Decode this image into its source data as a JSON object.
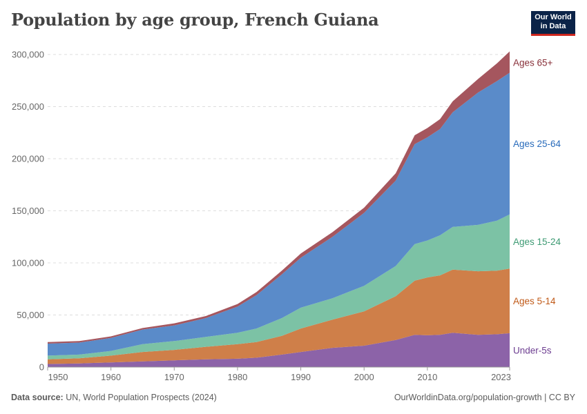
{
  "title": "Population by age group, French Guiana",
  "logo": {
    "line1": "Our World",
    "line2": "in Data"
  },
  "footer": {
    "source_label": "Data source:",
    "source_text": "UN, World Population Prospects (2024)",
    "url": "OurWorldinData.org/population-growth | CC BY"
  },
  "chart_data": {
    "type": "area",
    "stacked": true,
    "title": "Population by age group, French Guiana",
    "xlim": [
      1950,
      2023
    ],
    "ylim": [
      0,
      300000
    ],
    "y_ticks": [
      0,
      50000,
      100000,
      150000,
      200000,
      250000,
      300000
    ],
    "y_tick_labels": [
      "0",
      "50,000",
      "100,000",
      "150,000",
      "200,000",
      "250,000",
      "300,000"
    ],
    "x_ticks": [
      1950,
      1960,
      1970,
      1980,
      1990,
      2000,
      2010,
      2023
    ],
    "x_tick_labels": [
      "1950",
      "1960",
      "1970",
      "1980",
      "1990",
      "2000",
      "2010",
      "2023"
    ],
    "grid": true,
    "legend": "right-inline",
    "x": [
      1950,
      1955,
      1960,
      1965,
      1970,
      1975,
      1980,
      1983,
      1987,
      1990,
      1995,
      2000,
      2005,
      2008,
      2010,
      2012,
      2014,
      2018,
      2021,
      2023
    ],
    "series": [
      {
        "name": "Under-5s",
        "color": "#8c63a8",
        "label_color": "#6d3e91",
        "values": [
          3000,
          3500,
          4500,
          5500,
          6500,
          7500,
          8000,
          9000,
          12000,
          14500,
          18500,
          20500,
          26000,
          31000,
          30500,
          31000,
          33000,
          31000,
          31500,
          32500
        ]
      },
      {
        "name": "Ages 5-14",
        "color": "#cf7f49",
        "label_color": "#c05917",
        "values": [
          4500,
          5000,
          6500,
          9000,
          10000,
          12000,
          14000,
          15000,
          18000,
          22500,
          27000,
          33000,
          42000,
          52000,
          55500,
          57000,
          60500,
          61000,
          61000,
          62000
        ]
      },
      {
        "name": "Ages 15-24",
        "color": "#7cc2a5",
        "label_color": "#3d9a73",
        "values": [
          3500,
          3500,
          4500,
          7500,
          8500,
          9500,
          11000,
          13000,
          17000,
          20000,
          20500,
          24500,
          29000,
          35000,
          35500,
          38500,
          41000,
          44500,
          48000,
          52000
        ]
      },
      {
        "name": "Ages 25-64",
        "color": "#5a8bc9",
        "label_color": "#286bbb",
        "values": [
          11500,
          11500,
          12500,
          14000,
          15000,
          18000,
          25000,
          32000,
          42000,
          48000,
          59000,
          70000,
          82000,
          96000,
          99000,
          102000,
          110000,
          127000,
          134000,
          136000
        ]
      },
      {
        "name": "Ages 65+",
        "color": "#a5565e",
        "label_color": "#883039",
        "values": [
          1500,
          1500,
          1500,
          1500,
          2000,
          2000,
          2500,
          3000,
          3500,
          4000,
          4500,
          5000,
          7000,
          8500,
          9000,
          9500,
          10500,
          13000,
          17000,
          20500
        ]
      }
    ]
  }
}
